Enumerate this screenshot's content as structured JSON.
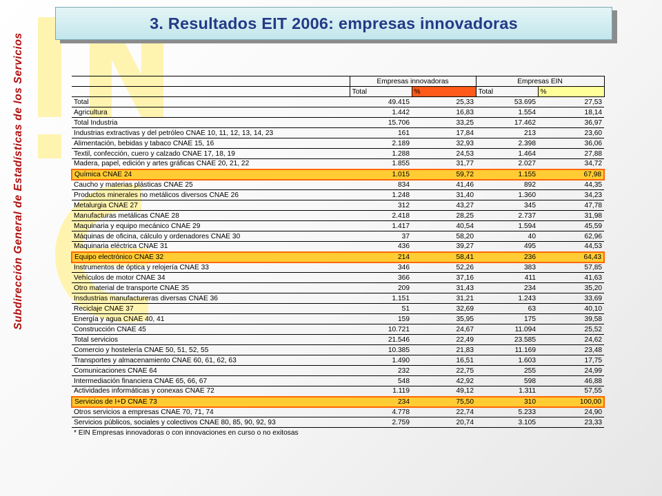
{
  "side_label": "Subdirección General de Estadísticas de los Servicios",
  "title": "3. Resultados EIT 2006: empresas innovadoras",
  "table": {
    "group_headers": [
      "Empresas innovadoras",
      "Empresas EIN"
    ],
    "sub_headers": [
      "Total",
      "%",
      "Total",
      "%"
    ],
    "rows": [
      {
        "label": "Total",
        "v": [
          "49.415",
          "25,33",
          "53.695",
          "27,53"
        ]
      },
      {
        "label": "Agricultura",
        "v": [
          "1.442",
          "16,83",
          "1.554",
          "18,14"
        ]
      },
      {
        "label": "Total Industria",
        "v": [
          "15.706",
          "33,25",
          "17.462",
          "36,97"
        ]
      },
      {
        "label": "Industrias extractivas y del petróleo CNAE 10, 11, 12, 13, 14, 23",
        "v": [
          "161",
          "17,84",
          "213",
          "23,60"
        ]
      },
      {
        "label": "Alimentación, bebidas y tabaco CNAE 15, 16",
        "v": [
          "2.189",
          "32,93",
          "2.398",
          "36,06"
        ]
      },
      {
        "label": "Textil, confección, cuero y calzado CNAE 17, 18, 19",
        "v": [
          "1.288",
          "24,53",
          "1.464",
          "27,88"
        ]
      },
      {
        "label": "Madera, papel, edición y artes gráficas CNAE 20, 21, 22",
        "v": [
          "1.855",
          "31,77",
          "2.027",
          "34,72"
        ]
      },
      {
        "label": "Química CNAE 24",
        "v": [
          "1.015",
          "59,72",
          "1.155",
          "67,98"
        ],
        "hl": true
      },
      {
        "label": "Caucho y materias plásticas CNAE 25",
        "v": [
          "834",
          "41,46",
          "892",
          "44,35"
        ]
      },
      {
        "label": "Productos minerales no metálicos diversos CNAE 26",
        "v": [
          "1.248",
          "31,40",
          "1.360",
          "34,23"
        ]
      },
      {
        "label": "Metalurgia CNAE 27",
        "v": [
          "312",
          "43,27",
          "345",
          "47,78"
        ]
      },
      {
        "label": "Manufacturas metálicas CNAE 28",
        "v": [
          "2.418",
          "28,25",
          "2.737",
          "31,98"
        ]
      },
      {
        "label": "Maquinaria y equipo mecánico CNAE 29",
        "v": [
          "1.417",
          "40,54",
          "1.594",
          "45,59"
        ]
      },
      {
        "label": "Máquinas de oficina, cálculo y ordenadores CNAE 30",
        "v": [
          "37",
          "58,20",
          "40",
          "62,96"
        ]
      },
      {
        "label": "Maquinaria eléctrica CNAE 31",
        "v": [
          "436",
          "39,27",
          "495",
          "44,53"
        ]
      },
      {
        "label": "Equipo electrónico CNAE 32",
        "v": [
          "214",
          "58,41",
          "236",
          "64,43"
        ],
        "hl": true
      },
      {
        "label": "Instrumentos de óptica y relojería CNAE 33",
        "v": [
          "346",
          "52,26",
          "383",
          "57,85"
        ]
      },
      {
        "label": "Vehículos de motor CNAE 34",
        "v": [
          "366",
          "37,16",
          "411",
          "41,63"
        ]
      },
      {
        "label": "Otro material de transporte CNAE 35",
        "v": [
          "209",
          "31,43",
          "234",
          "35,20"
        ]
      },
      {
        "label": "Insdustrias manufactureras diversas CNAE 36",
        "v": [
          "1.151",
          "31,21",
          "1.243",
          "33,69"
        ]
      },
      {
        "label": "Reciclaje CNAE 37",
        "v": [
          "51",
          "32,69",
          "63",
          "40,10"
        ]
      },
      {
        "label": "Energía y agua CNAE 40, 41",
        "v": [
          "159",
          "35,95",
          "175",
          "39,58"
        ]
      },
      {
        "label": "Construcción CNAE 45",
        "v": [
          "10.721",
          "24,67",
          "11.094",
          "25,52"
        ]
      },
      {
        "label": "Total servicios",
        "v": [
          "21.546",
          "22,49",
          "23.585",
          "24,62"
        ]
      },
      {
        "label": "Comercio y hostelería CNAE 50, 51, 52, 55",
        "v": [
          "10.385",
          "21,83",
          "11.169",
          "23,48"
        ]
      },
      {
        "label": "Transportes y almacenamiento CNAE 60, 61, 62, 63",
        "v": [
          "1.490",
          "16,51",
          "1.603",
          "17,75"
        ]
      },
      {
        "label": "Comunicaciones CNAE 64",
        "v": [
          "232",
          "22,75",
          "255",
          "24,99"
        ]
      },
      {
        "label": "Intermediación financiera CNAE 65, 66, 67",
        "v": [
          "548",
          "42,92",
          "598",
          "46,88"
        ]
      },
      {
        "label": "Actividades informáticas y conexas CNAE 72",
        "v": [
          "1.119",
          "49,12",
          "1.311",
          "57,55"
        ]
      },
      {
        "label": "Servicios de I+D CNAE 73",
        "v": [
          "234",
          "75,50",
          "310",
          "100,00"
        ],
        "hl": true
      },
      {
        "label": "Otros servicios a empresas CNAE 70, 71, 74",
        "v": [
          "4.778",
          "22,74",
          "5.233",
          "24,90"
        ]
      },
      {
        "label": "Servicios públicos, sociales y colectivos CNAE 80, 85, 90, 92, 93",
        "v": [
          "2.759",
          "20,74",
          "3.105",
          "23,33"
        ]
      }
    ],
    "footnote": "* EIN Empresas innovadoras o con innovaciones en curso o no exitosas"
  }
}
